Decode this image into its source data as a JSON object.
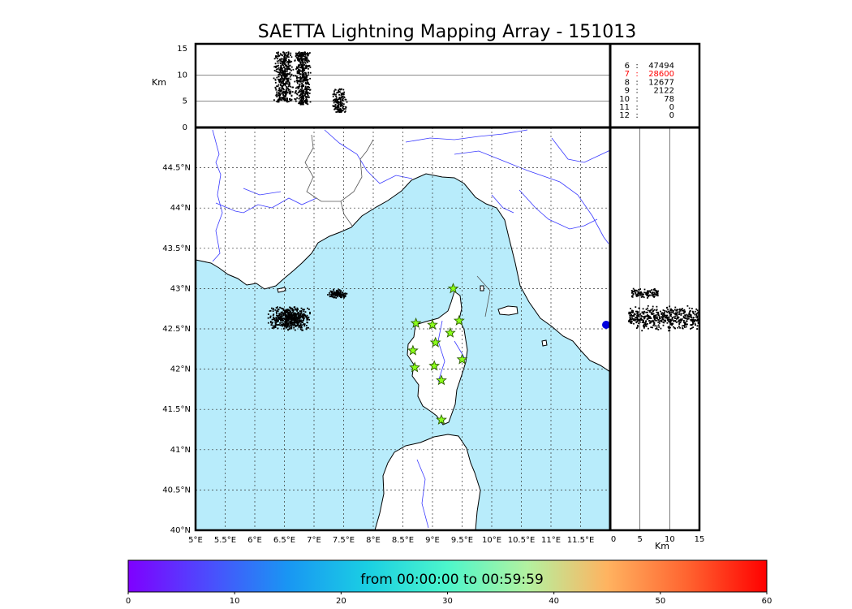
{
  "title": "SAETTA Lightning Mapping Array - 151013",
  "colors": {
    "sea": "#b8ecfb",
    "land": "#ffffff",
    "coast": "#000000",
    "rivers": "#3a3aff",
    "borders": "#555555",
    "grid": "#333333",
    "station_fill": "#8bff1a",
    "station_stroke": "#2c5d00",
    "highlight_text": "#ff0000",
    "marker": "#0000dd"
  },
  "chart_data": [
    {
      "type": "scatter",
      "panel": "altitude-vs-longitude",
      "ylabel": "Km",
      "ylim": [
        0,
        15
      ],
      "yticks": [
        "0",
        "5",
        "10",
        "15"
      ],
      "grid": true,
      "clusters": [
        {
          "lon": [
            6.3,
            6.65
          ],
          "alt": [
            5,
            14.5
          ],
          "color_minutes": [
            25,
            45
          ]
        },
        {
          "lon": [
            6.65,
            6.95
          ],
          "alt": [
            4.5,
            14.5
          ],
          "color_minutes": [
            50,
            60
          ]
        },
        {
          "lon": [
            7.3,
            7.55
          ],
          "alt": [
            3,
            7.5
          ],
          "color_minutes": [
            55,
            60
          ]
        }
      ]
    },
    {
      "type": "scatter",
      "panel": "plan-view-map",
      "xlim": [
        5,
        12
      ],
      "ylim": [
        40,
        45
      ],
      "xticks": [
        "5°E",
        "5.5°E",
        "6°E",
        "6.5°E",
        "7°E",
        "7.5°E",
        "8°E",
        "8.5°E",
        "9°E",
        "9.5°E",
        "10°E",
        "10.5°E",
        "11°E",
        "11.5°E"
      ],
      "yticks": [
        "40°N",
        "40.5°N",
        "41°N",
        "41.5°N",
        "42°N",
        "42.5°N",
        "43°N",
        "43.5°N",
        "44°N",
        "44.5°N"
      ],
      "grid": true,
      "clusters": [
        {
          "lon": [
            6.2,
            6.95
          ],
          "lat": [
            42.48,
            42.8
          ],
          "color_minutes": [
            30,
            60
          ]
        },
        {
          "lon": [
            7.2,
            7.55
          ],
          "lat": [
            42.88,
            43.0
          ],
          "color_minutes": [
            55,
            60
          ]
        }
      ],
      "stations": [
        {
          "lon": 8.72,
          "lat": 42.57
        },
        {
          "lon": 9.0,
          "lat": 42.55
        },
        {
          "lon": 9.35,
          "lat": 43.0
        },
        {
          "lon": 9.45,
          "lat": 42.6
        },
        {
          "lon": 9.3,
          "lat": 42.45
        },
        {
          "lon": 9.05,
          "lat": 42.33
        },
        {
          "lon": 8.67,
          "lat": 42.23
        },
        {
          "lon": 9.5,
          "lat": 42.12
        },
        {
          "lon": 8.7,
          "lat": 42.02
        },
        {
          "lon": 9.03,
          "lat": 42.04
        },
        {
          "lon": 9.15,
          "lat": 41.86
        },
        {
          "lon": 9.15,
          "lat": 41.37
        }
      ]
    },
    {
      "type": "scatter",
      "panel": "latitude-vs-altitude",
      "xlabel": "Km",
      "xlim": [
        0,
        15
      ],
      "xticks": [
        "0",
        "5",
        "10",
        "15"
      ],
      "grid": true,
      "clusters": [
        {
          "alt": [
            3,
            14.8
          ],
          "lat": [
            42.48,
            42.8
          ],
          "color_minutes": [
            30,
            60
          ]
        },
        {
          "alt": [
            3.5,
            8
          ],
          "lat": [
            42.88,
            43.02
          ],
          "color_minutes": [
            55,
            60
          ]
        }
      ]
    },
    {
      "type": "table",
      "panel": "station-count-histogram",
      "rows": [
        {
          "stations": "6",
          "sep": ":",
          "count": "47494",
          "highlight": false
        },
        {
          "stations": "7",
          "sep": ":",
          "count": "28600",
          "highlight": true
        },
        {
          "stations": "8",
          "sep": ":",
          "count": "12677",
          "highlight": false
        },
        {
          "stations": "9",
          "sep": ":",
          "count": "2122",
          "highlight": false
        },
        {
          "stations": "10",
          "sep": ":",
          "count": "78",
          "highlight": false
        },
        {
          "stations": "11",
          "sep": ":",
          "count": "0",
          "highlight": false
        },
        {
          "stations": "12",
          "sep": ":",
          "count": "0",
          "highlight": false
        }
      ]
    },
    {
      "type": "heatmap",
      "panel": "time-colorbar",
      "label": "from 00:00:00 to 00:59:59",
      "range": [
        0,
        60
      ],
      "ticks": [
        "0",
        "10",
        "20",
        "30",
        "40",
        "50",
        "60"
      ],
      "colormap": "rainbow"
    }
  ]
}
